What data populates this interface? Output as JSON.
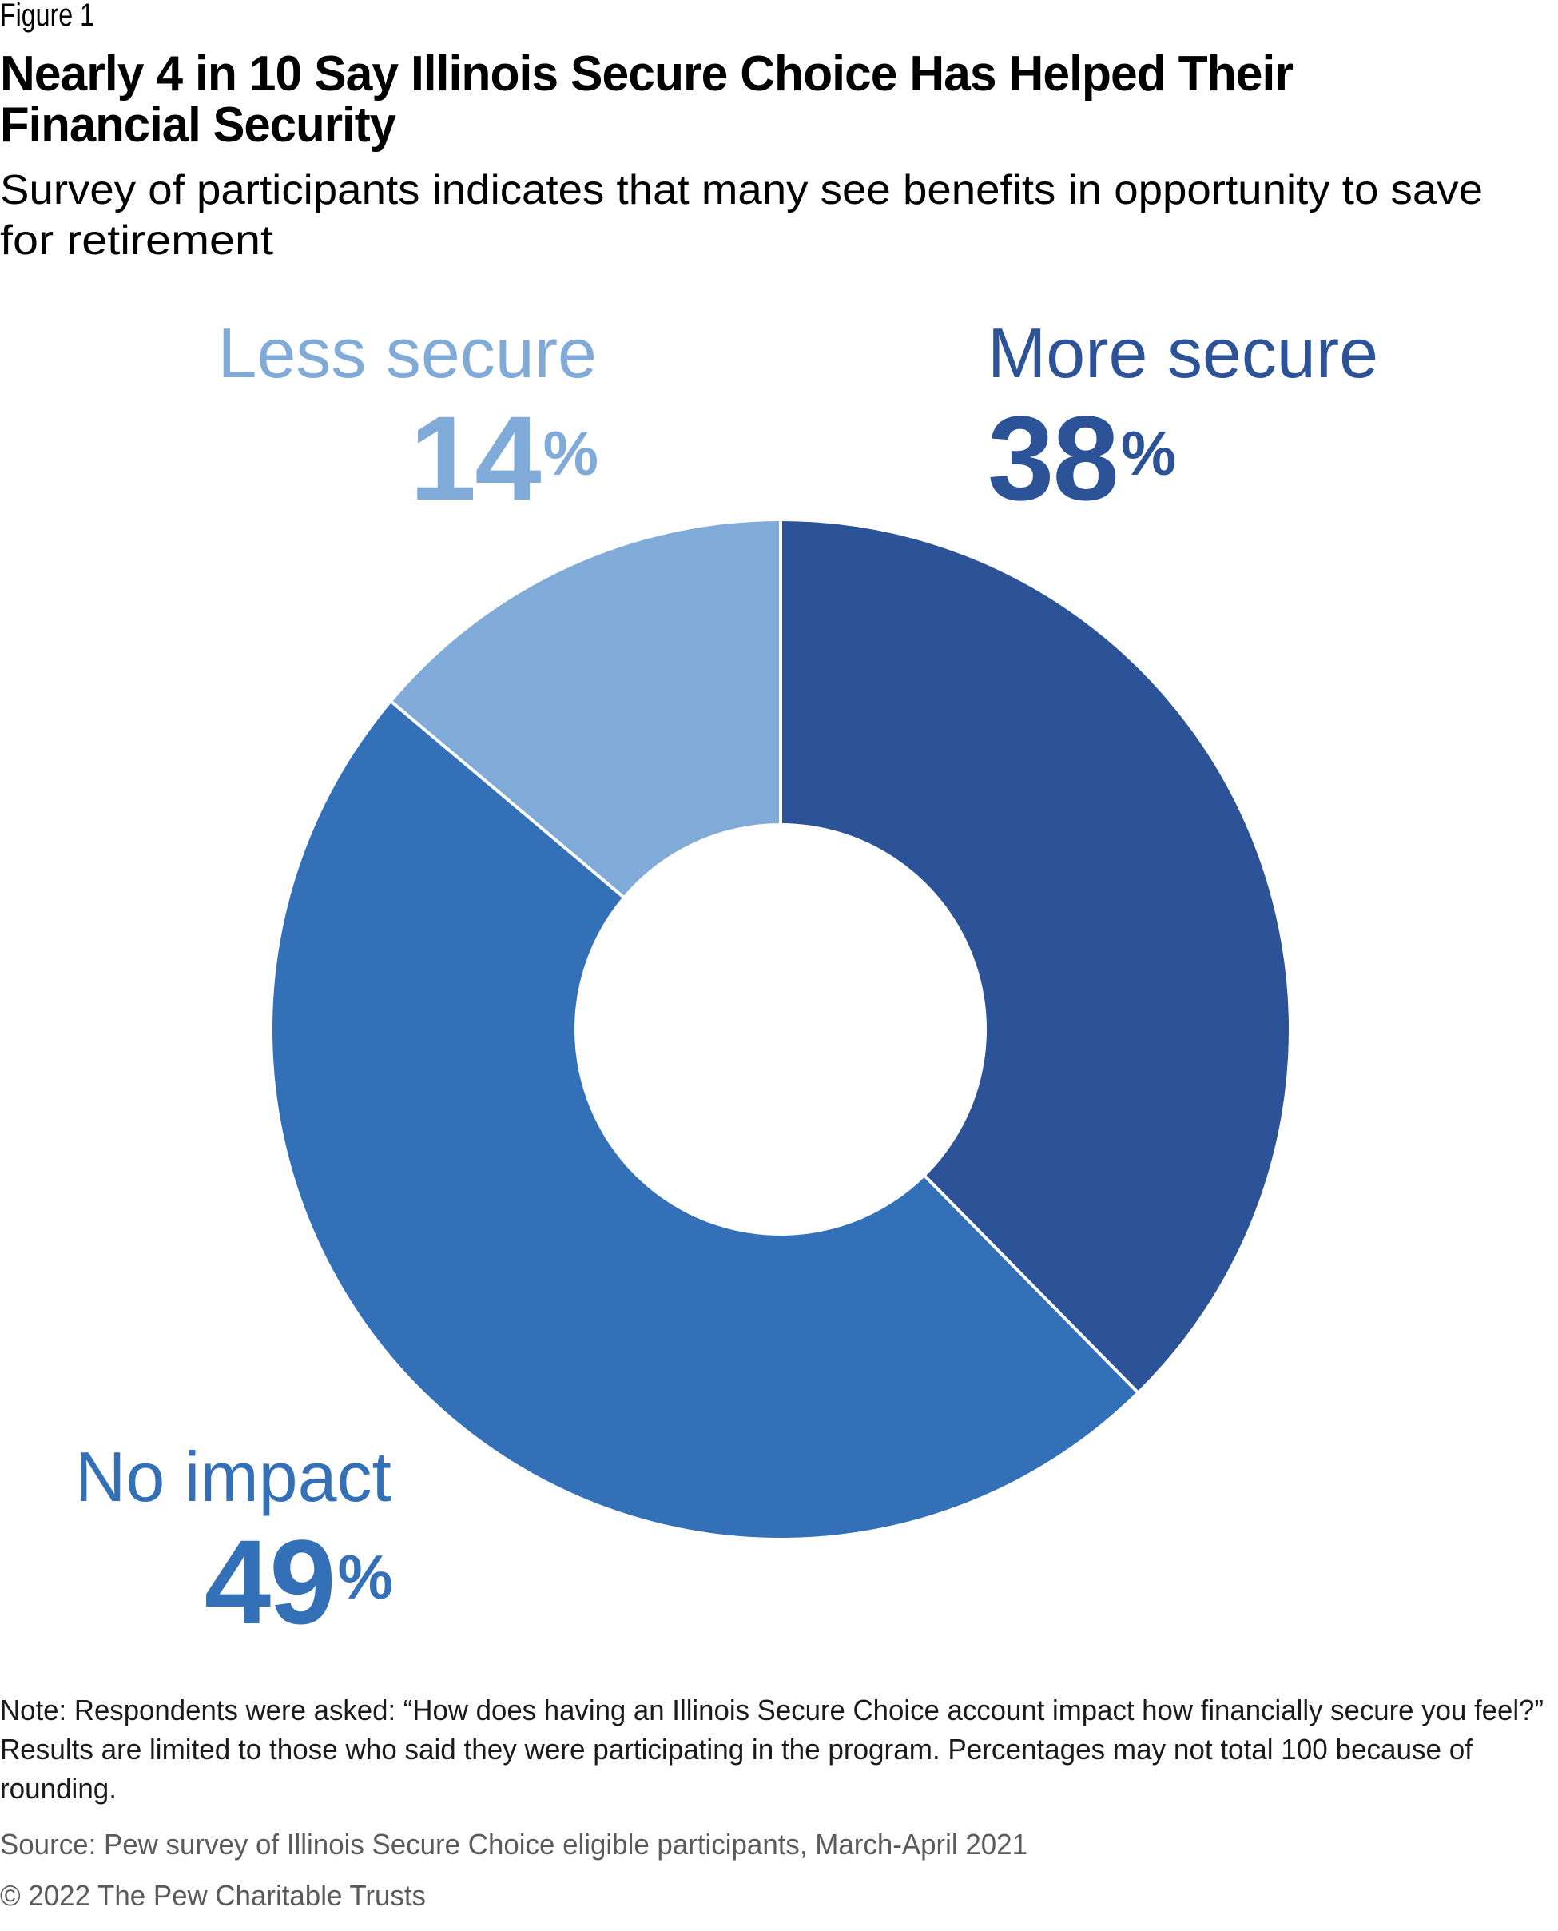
{
  "figure_label": "Figure 1",
  "title_lines": [
    "Nearly 4 in 10 Say Illinois Secure Choice Has Helped Their",
    "Financial Security"
  ],
  "subtitle_lines": [
    "Survey of participants indicates that many see benefits in opportunity to save",
    "for retirement"
  ],
  "chart_data": {
    "type": "pie",
    "variant": "donut",
    "title": "Nearly 4 in 10 Say Illinois Secure Choice Has Helped Their Financial Security",
    "subtitle": "Survey of participants indicates that many see benefits in opportunity to save for retirement",
    "start": "top",
    "direction": "clockwise",
    "slices": [
      {
        "label": "More secure",
        "value": 38,
        "display": "38",
        "unit": "%",
        "color": "#2c5298"
      },
      {
        "label": "No impact",
        "value": 49,
        "display": "49",
        "unit": "%",
        "color": "#3370b7"
      },
      {
        "label": "Less secure",
        "value": 14,
        "display": "14",
        "unit": "%",
        "color": "#80aad7"
      }
    ],
    "separator_color": "#ffffff"
  },
  "notes": {
    "note_lines": [
      "Note: Respondents were asked: “How does having an Illinois Secure Choice account impact how financially secure you feel?”",
      "Results are limited to those who said they were participating in the program. Percentages may not total 100 because of",
      "rounding."
    ],
    "source": "Source: Pew survey of Illinois Secure Choice eligible participants, March-April 2021",
    "copyright": "© 2022 The Pew Charitable Trusts"
  },
  "colors": {
    "text": "#000000",
    "muted_text": "#5a5a5a"
  }
}
